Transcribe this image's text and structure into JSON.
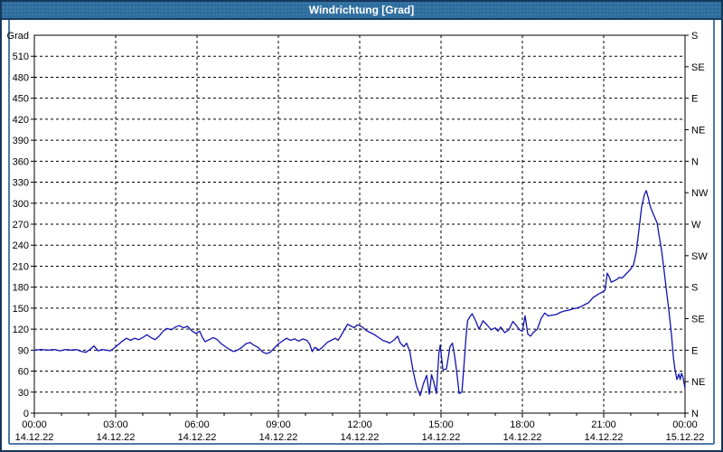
{
  "window": {
    "title": "Windrichtung [Grad]"
  },
  "colors": {
    "titlebar_bg": "#2d6d9e",
    "titlebar_text": "#ffffff",
    "outer_border": "#16375c",
    "inner_frame": "#4d7ba5",
    "plot_background": "#ffffff",
    "axis": "#000000",
    "grid": "#000000",
    "line": "#1212b0",
    "label_text": "#000000"
  },
  "chart_data": {
    "type": "line",
    "title": "Windrichtung [Grad]",
    "ylabel_left": "Grad",
    "ylim": [
      0,
      540
    ],
    "xlim_hours": [
      0,
      24
    ],
    "grid": "dashed",
    "y_left_ticks": [
      0,
      30,
      60,
      90,
      120,
      150,
      180,
      210,
      240,
      270,
      300,
      330,
      360,
      390,
      420,
      450,
      480,
      510
    ],
    "y_right_labels": [
      {
        "v": 0,
        "label": "N"
      },
      {
        "v": 45,
        "label": "NE"
      },
      {
        "v": 90,
        "label": "E"
      },
      {
        "v": 135,
        "label": "SE"
      },
      {
        "v": 180,
        "label": "S"
      },
      {
        "v": 225,
        "label": "SW"
      },
      {
        "v": 270,
        "label": "W"
      },
      {
        "v": 315,
        "label": "NW"
      },
      {
        "v": 360,
        "label": "N"
      },
      {
        "v": 405,
        "label": "NE"
      },
      {
        "v": 450,
        "label": "E"
      },
      {
        "v": 495,
        "label": "SE"
      },
      {
        "v": 540,
        "label": "S"
      }
    ],
    "x_major_ticks": [
      {
        "h": 0,
        "time": "00:00",
        "date": "14.12.22"
      },
      {
        "h": 3,
        "time": "03:00",
        "date": "14.12.22"
      },
      {
        "h": 6,
        "time": "06:00",
        "date": "14.12.22"
      },
      {
        "h": 9,
        "time": "09:00",
        "date": "14.12.22"
      },
      {
        "h": 12,
        "time": "12:00",
        "date": "14.12.22"
      },
      {
        "h": 15,
        "time": "15:00",
        "date": "14.12.22"
      },
      {
        "h": 18,
        "time": "18:00",
        "date": "14.12.22"
      },
      {
        "h": 21,
        "time": "21:00",
        "date": "14.12.22"
      },
      {
        "h": 24,
        "time": "00:00",
        "date": "15.12.22"
      }
    ],
    "x_minor_step_hours": 1,
    "series": [
      {
        "name": "Windrichtung",
        "color": "#1212b0",
        "points": [
          [
            0,
            90
          ],
          [
            0.25,
            91
          ],
          [
            0.5,
            90
          ],
          [
            0.75,
            91
          ],
          [
            0.95,
            89
          ],
          [
            1.15,
            91
          ],
          [
            1.35,
            90
          ],
          [
            1.55,
            91
          ],
          [
            1.75,
            88
          ],
          [
            1.9,
            87
          ],
          [
            2.05,
            91
          ],
          [
            2.2,
            96
          ],
          [
            2.35,
            89
          ],
          [
            2.5,
            91
          ],
          [
            2.65,
            90
          ],
          [
            2.8,
            89
          ],
          [
            2.95,
            93
          ],
          [
            3.1,
            98
          ],
          [
            3.25,
            103
          ],
          [
            3.4,
            107
          ],
          [
            3.55,
            104
          ],
          [
            3.7,
            107
          ],
          [
            3.85,
            105
          ],
          [
            4.0,
            108
          ],
          [
            4.15,
            112
          ],
          [
            4.3,
            108
          ],
          [
            4.45,
            105
          ],
          [
            4.6,
            110
          ],
          [
            4.75,
            117
          ],
          [
            4.9,
            121
          ],
          [
            5.05,
            119
          ],
          [
            5.2,
            123
          ],
          [
            5.35,
            125
          ],
          [
            5.5,
            122
          ],
          [
            5.65,
            124
          ],
          [
            5.8,
            118
          ],
          [
            5.95,
            114
          ],
          [
            6.1,
            117
          ],
          [
            6.2,
            108
          ],
          [
            6.3,
            102
          ],
          [
            6.45,
            105
          ],
          [
            6.6,
            108
          ],
          [
            6.75,
            105
          ],
          [
            6.9,
            99
          ],
          [
            7.05,
            95
          ],
          [
            7.2,
            91
          ],
          [
            7.35,
            88
          ],
          [
            7.5,
            90
          ],
          [
            7.65,
            94
          ],
          [
            7.8,
            99
          ],
          [
            7.95,
            101
          ],
          [
            8.1,
            97
          ],
          [
            8.25,
            94
          ],
          [
            8.4,
            88
          ],
          [
            8.55,
            85
          ],
          [
            8.7,
            87
          ],
          [
            8.85,
            93
          ],
          [
            9.0,
            99
          ],
          [
            9.15,
            103
          ],
          [
            9.3,
            107
          ],
          [
            9.45,
            104
          ],
          [
            9.6,
            106
          ],
          [
            9.75,
            103
          ],
          [
            9.9,
            106
          ],
          [
            10.05,
            104
          ],
          [
            10.15,
            99
          ],
          [
            10.25,
            88
          ],
          [
            10.35,
            94
          ],
          [
            10.5,
            90
          ],
          [
            10.65,
            95
          ],
          [
            10.8,
            101
          ],
          [
            10.95,
            104
          ],
          [
            11.1,
            107
          ],
          [
            11.2,
            104
          ],
          [
            11.3,
            110
          ],
          [
            11.45,
            120
          ],
          [
            11.55,
            127
          ],
          [
            11.7,
            124
          ],
          [
            11.8,
            122
          ],
          [
            11.9,
            126
          ],
          [
            12.0,
            125
          ],
          [
            12.1,
            123
          ],
          [
            12.25,
            118
          ],
          [
            12.4,
            115
          ],
          [
            12.55,
            112
          ],
          [
            12.7,
            108
          ],
          [
            12.85,
            104
          ],
          [
            13.0,
            102
          ],
          [
            13.1,
            100
          ],
          [
            13.25,
            104
          ],
          [
            13.4,
            110
          ],
          [
            13.5,
            100
          ],
          [
            13.63,
            95
          ],
          [
            13.73,
            100
          ],
          [
            13.85,
            88
          ],
          [
            13.97,
            60
          ],
          [
            14.1,
            38
          ],
          [
            14.23,
            25
          ],
          [
            14.35,
            42
          ],
          [
            14.47,
            54
          ],
          [
            14.57,
            27
          ],
          [
            14.65,
            55
          ],
          [
            14.73,
            45
          ],
          [
            14.83,
            28
          ],
          [
            14.92,
            85
          ],
          [
            14.97,
            97
          ],
          [
            15.07,
            62
          ],
          [
            15.2,
            63
          ],
          [
            15.33,
            95
          ],
          [
            15.42,
            100
          ],
          [
            15.5,
            82
          ],
          [
            15.57,
            62
          ],
          [
            15.67,
            28
          ],
          [
            15.77,
            30
          ],
          [
            15.85,
            70
          ],
          [
            15.92,
            108
          ],
          [
            15.98,
            132
          ],
          [
            16.05,
            137
          ],
          [
            16.15,
            142
          ],
          [
            16.3,
            130
          ],
          [
            16.4,
            120
          ],
          [
            16.55,
            132
          ],
          [
            16.7,
            126
          ],
          [
            16.85,
            119
          ],
          [
            17.0,
            122
          ],
          [
            17.1,
            117
          ],
          [
            17.2,
            123
          ],
          [
            17.35,
            115
          ],
          [
            17.5,
            119
          ],
          [
            17.65,
            131
          ],
          [
            17.8,
            124
          ],
          [
            17.9,
            119
          ],
          [
            18.0,
            117
          ],
          [
            18.1,
            139
          ],
          [
            18.2,
            113
          ],
          [
            18.3,
            110
          ],
          [
            18.4,
            115
          ],
          [
            18.55,
            120
          ],
          [
            18.7,
            136
          ],
          [
            18.83,
            143
          ],
          [
            18.95,
            139
          ],
          [
            19.1,
            140
          ],
          [
            19.25,
            141
          ],
          [
            19.4,
            144
          ],
          [
            19.55,
            146
          ],
          [
            19.7,
            147
          ],
          [
            19.85,
            149
          ],
          [
            20.0,
            150
          ],
          [
            20.15,
            152
          ],
          [
            20.3,
            155
          ],
          [
            20.45,
            158
          ],
          [
            20.6,
            165
          ],
          [
            20.8,
            170
          ],
          [
            20.95,
            173
          ],
          [
            21.05,
            176
          ],
          [
            21.13,
            200
          ],
          [
            21.2,
            195
          ],
          [
            21.28,
            187
          ],
          [
            21.38,
            189
          ],
          [
            21.48,
            191
          ],
          [
            21.58,
            194
          ],
          [
            21.68,
            193
          ],
          [
            21.78,
            197
          ],
          [
            21.88,
            201
          ],
          [
            21.98,
            205
          ],
          [
            22.1,
            212
          ],
          [
            22.2,
            230
          ],
          [
            22.3,
            262
          ],
          [
            22.4,
            295
          ],
          [
            22.5,
            312
          ],
          [
            22.57,
            318
          ],
          [
            22.65,
            307
          ],
          [
            22.72,
            295
          ],
          [
            22.8,
            287
          ],
          [
            22.9,
            278
          ],
          [
            22.97,
            272
          ],
          [
            23.05,
            252
          ],
          [
            23.13,
            234
          ],
          [
            23.22,
            206
          ],
          [
            23.3,
            180
          ],
          [
            23.4,
            148
          ],
          [
            23.5,
            112
          ],
          [
            23.57,
            80
          ],
          [
            23.63,
            62
          ],
          [
            23.7,
            48
          ],
          [
            23.77,
            56
          ],
          [
            23.82,
            48
          ],
          [
            23.87,
            57
          ],
          [
            23.92,
            52
          ],
          [
            23.97,
            42
          ],
          [
            24.0,
            35
          ]
        ]
      }
    ]
  }
}
